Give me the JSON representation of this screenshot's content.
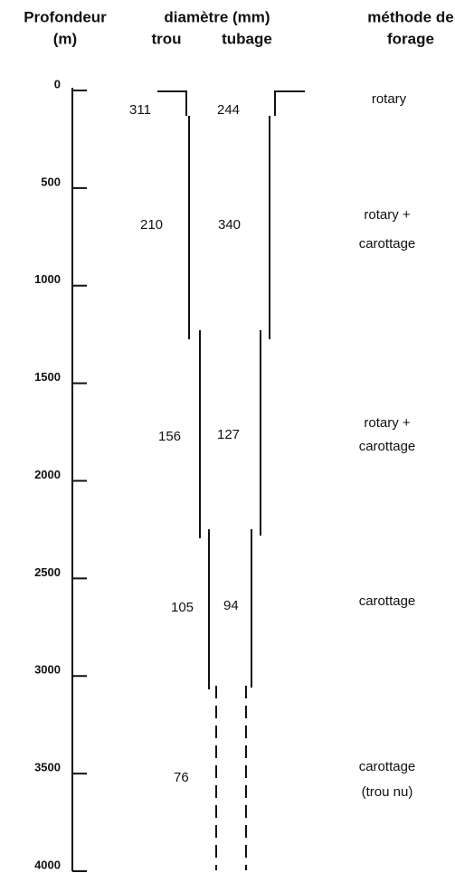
{
  "header": {
    "depth": [
      "Profondeur",
      "(m)"
    ],
    "diameter": "diamètre (mm)",
    "hole": "trou",
    "casing": "tubage",
    "method": [
      "méthode de",
      "forage"
    ]
  },
  "depth_ticks": [
    0,
    500,
    1000,
    1500,
    2000,
    2500,
    3000,
    3500,
    4000
  ],
  "sections": [
    {
      "hole": 311,
      "casing": 244,
      "method": [
        "rotary"
      ]
    },
    {
      "hole": 210,
      "casing": 340,
      "method": [
        "rotary +",
        "carottage"
      ]
    },
    {
      "hole": 156,
      "casing": 127,
      "method": [
        "rotary +",
        "carottage"
      ]
    },
    {
      "hole": 105,
      "casing": 94,
      "method": [
        "carottage"
      ]
    },
    {
      "hole": 76,
      "method": [
        "carottage",
        "(trou nu)"
      ]
    }
  ]
}
